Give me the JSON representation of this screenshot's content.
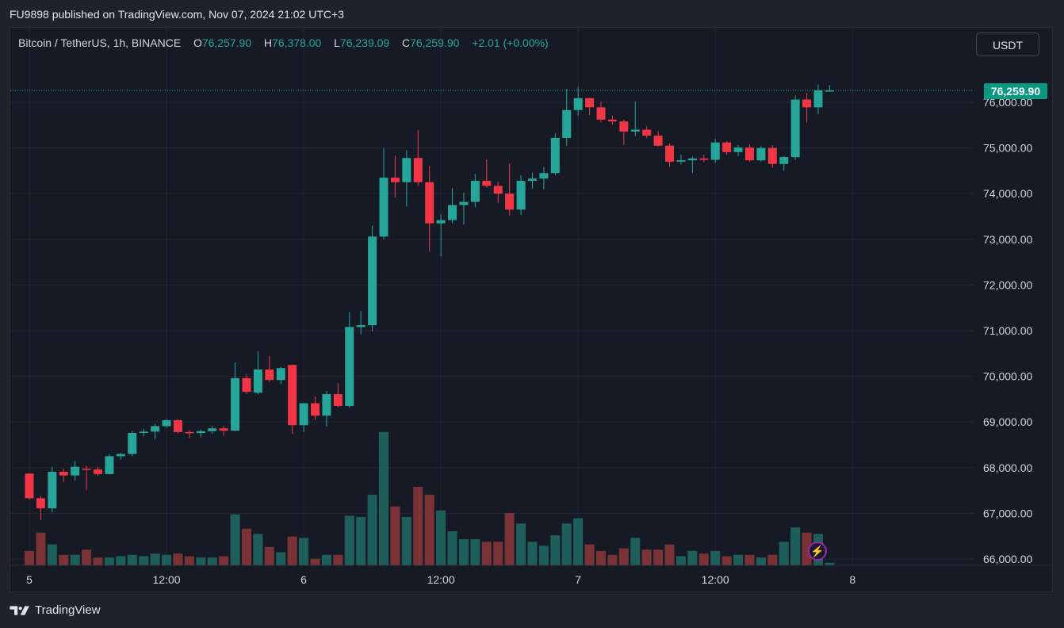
{
  "header": {
    "publish_line": "FU9898 published on TradingView.com, Nov 07, 2024 21:02 UTC+3"
  },
  "legend": {
    "symbol": "Bitcoin / TetherUS, 1h, BINANCE",
    "o_label": "O",
    "o_value": "76,257.90",
    "h_label": "H",
    "h_value": "76,378.00",
    "l_label": "L",
    "l_value": "76,239.09",
    "c_label": "C",
    "c_value": "76,259.90",
    "change": "+2.01 (+0.00%)"
  },
  "currency_button": "USDT",
  "last_price_label": "76,259.90",
  "footer": {
    "brand": "TradingView"
  },
  "colors": {
    "up": "#26a69a",
    "down": "#f23645",
    "vol_up": "#1f5f5b",
    "vol_down": "#7a3236",
    "grid": "#232632",
    "price_line": "#26a69a",
    "axis_text": "#d1d4dc"
  },
  "icons": [
    "tradingview-logo-icon",
    "lightning-icon"
  ],
  "chart_data": {
    "type": "candlestick",
    "interval": "1h",
    "price_axis": {
      "ticks": [
        "66,000.00",
        "67,000.00",
        "68,000.00",
        "69,000.00",
        "70,000.00",
        "71,000.00",
        "72,000.00",
        "73,000.00",
        "74,000.00",
        "75,000.00",
        "76,000.00"
      ],
      "ylim": [
        65950,
        76700
      ],
      "position": "right"
    },
    "time_axis": {
      "ticks": [
        {
          "label": "5",
          "index": 0
        },
        {
          "label": "12:00",
          "index": 12
        },
        {
          "label": "6",
          "index": 24
        },
        {
          "label": "12:00",
          "index": 36
        },
        {
          "label": "7",
          "index": 48
        },
        {
          "label": "12:00",
          "index": 60
        },
        {
          "label": "8",
          "index": 72
        }
      ]
    },
    "grid": true,
    "last_price": 76259.9,
    "candles": [
      {
        "o": 67870,
        "h": 67880,
        "l": 67300,
        "c": 67330
      },
      {
        "o": 67330,
        "h": 67380,
        "l": 66850,
        "c": 67110
      },
      {
        "o": 67110,
        "h": 68020,
        "l": 67020,
        "c": 67910
      },
      {
        "o": 67910,
        "h": 67980,
        "l": 67680,
        "c": 67830
      },
      {
        "o": 67830,
        "h": 68150,
        "l": 67720,
        "c": 68020
      },
      {
        "o": 67980,
        "h": 68040,
        "l": 67500,
        "c": 67960
      },
      {
        "o": 67960,
        "h": 68020,
        "l": 67820,
        "c": 67860
      },
      {
        "o": 67860,
        "h": 68300,
        "l": 67850,
        "c": 68250
      },
      {
        "o": 68250,
        "h": 68320,
        "l": 68180,
        "c": 68300
      },
      {
        "o": 68300,
        "h": 68810,
        "l": 68250,
        "c": 68760
      },
      {
        "o": 68760,
        "h": 68850,
        "l": 68680,
        "c": 68790
      },
      {
        "o": 68790,
        "h": 68960,
        "l": 68620,
        "c": 68910
      },
      {
        "o": 68910,
        "h": 69060,
        "l": 68870,
        "c": 69040
      },
      {
        "o": 69040,
        "h": 69060,
        "l": 68750,
        "c": 68780
      },
      {
        "o": 68780,
        "h": 68830,
        "l": 68640,
        "c": 68760
      },
      {
        "o": 68760,
        "h": 68840,
        "l": 68660,
        "c": 68800
      },
      {
        "o": 68800,
        "h": 68910,
        "l": 68740,
        "c": 68860
      },
      {
        "o": 68860,
        "h": 68920,
        "l": 68700,
        "c": 68810
      },
      {
        "o": 68810,
        "h": 70300,
        "l": 68800,
        "c": 69960
      },
      {
        "o": 69960,
        "h": 70050,
        "l": 69610,
        "c": 69660
      },
      {
        "o": 69640,
        "h": 70550,
        "l": 69600,
        "c": 70150
      },
      {
        "o": 70150,
        "h": 70450,
        "l": 69870,
        "c": 69920
      },
      {
        "o": 69920,
        "h": 70200,
        "l": 69830,
        "c": 70180
      },
      {
        "o": 70250,
        "h": 70260,
        "l": 68740,
        "c": 68930
      },
      {
        "o": 68930,
        "h": 69420,
        "l": 68780,
        "c": 69410
      },
      {
        "o": 69410,
        "h": 69560,
        "l": 69040,
        "c": 69140
      },
      {
        "o": 69140,
        "h": 69680,
        "l": 68900,
        "c": 69610
      },
      {
        "o": 69610,
        "h": 69850,
        "l": 69320,
        "c": 69350
      },
      {
        "o": 69350,
        "h": 71400,
        "l": 69310,
        "c": 71080
      },
      {
        "o": 71080,
        "h": 71430,
        "l": 70920,
        "c": 71120
      },
      {
        "o": 71120,
        "h": 73300,
        "l": 70980,
        "c": 73060
      },
      {
        "o": 73060,
        "h": 75000,
        "l": 73000,
        "c": 74350
      },
      {
        "o": 74350,
        "h": 74830,
        "l": 73920,
        "c": 74250
      },
      {
        "o": 74250,
        "h": 74950,
        "l": 73720,
        "c": 74780
      },
      {
        "o": 74780,
        "h": 75390,
        "l": 74170,
        "c": 74250
      },
      {
        "o": 74250,
        "h": 74600,
        "l": 72730,
        "c": 73350
      },
      {
        "o": 73350,
        "h": 73550,
        "l": 72630,
        "c": 73420
      },
      {
        "o": 73420,
        "h": 74120,
        "l": 73350,
        "c": 73750
      },
      {
        "o": 73750,
        "h": 74020,
        "l": 73320,
        "c": 73820
      },
      {
        "o": 73820,
        "h": 74430,
        "l": 73700,
        "c": 74280
      },
      {
        "o": 74280,
        "h": 74750,
        "l": 74130,
        "c": 74170
      },
      {
        "o": 74170,
        "h": 74260,
        "l": 73800,
        "c": 74000
      },
      {
        "o": 74000,
        "h": 74660,
        "l": 73520,
        "c": 73650
      },
      {
        "o": 73650,
        "h": 74400,
        "l": 73530,
        "c": 74280
      },
      {
        "o": 74280,
        "h": 74460,
        "l": 74110,
        "c": 74330
      },
      {
        "o": 74330,
        "h": 74580,
        "l": 74100,
        "c": 74450
      },
      {
        "o": 74450,
        "h": 75320,
        "l": 74400,
        "c": 75220
      },
      {
        "o": 75220,
        "h": 76300,
        "l": 75050,
        "c": 75830
      },
      {
        "o": 75830,
        "h": 76340,
        "l": 75700,
        "c": 76090
      },
      {
        "o": 76090,
        "h": 76100,
        "l": 75720,
        "c": 75890
      },
      {
        "o": 75890,
        "h": 76020,
        "l": 75560,
        "c": 75620
      },
      {
        "o": 75620,
        "h": 75710,
        "l": 75510,
        "c": 75580
      },
      {
        "o": 75580,
        "h": 75620,
        "l": 75060,
        "c": 75360
      },
      {
        "o": 75360,
        "h": 76020,
        "l": 75260,
        "c": 75400
      },
      {
        "o": 75400,
        "h": 75470,
        "l": 75220,
        "c": 75270
      },
      {
        "o": 75270,
        "h": 75370,
        "l": 75030,
        "c": 75050
      },
      {
        "o": 75050,
        "h": 75100,
        "l": 74590,
        "c": 74700
      },
      {
        "o": 74700,
        "h": 74850,
        "l": 74640,
        "c": 74730
      },
      {
        "o": 74730,
        "h": 74810,
        "l": 74450,
        "c": 74770
      },
      {
        "o": 74770,
        "h": 74850,
        "l": 74690,
        "c": 74740
      },
      {
        "o": 74740,
        "h": 75200,
        "l": 74680,
        "c": 75120
      },
      {
        "o": 75120,
        "h": 75150,
        "l": 74850,
        "c": 74910
      },
      {
        "o": 74910,
        "h": 75060,
        "l": 74820,
        "c": 75010
      },
      {
        "o": 75010,
        "h": 75080,
        "l": 74700,
        "c": 74730
      },
      {
        "o": 74730,
        "h": 75040,
        "l": 74700,
        "c": 75000
      },
      {
        "o": 75000,
        "h": 75060,
        "l": 74570,
        "c": 74650
      },
      {
        "o": 74650,
        "h": 74820,
        "l": 74500,
        "c": 74800
      },
      {
        "o": 74800,
        "h": 76150,
        "l": 74740,
        "c": 76060
      },
      {
        "o": 76060,
        "h": 76200,
        "l": 75560,
        "c": 75890
      },
      {
        "o": 75890,
        "h": 76378,
        "l": 75740,
        "c": 76260
      },
      {
        "o": 76257.9,
        "h": 76378,
        "l": 76239.09,
        "c": 76259.9
      }
    ],
    "volume": [
      {
        "v": 1.1,
        "up": false
      },
      {
        "v": 2.5,
        "up": false
      },
      {
        "v": 1.6,
        "up": true
      },
      {
        "v": 0.8,
        "up": false
      },
      {
        "v": 0.8,
        "up": true
      },
      {
        "v": 1.2,
        "up": false
      },
      {
        "v": 0.6,
        "up": false
      },
      {
        "v": 0.6,
        "up": true
      },
      {
        "v": 0.7,
        "up": true
      },
      {
        "v": 0.8,
        "up": true
      },
      {
        "v": 0.7,
        "up": true
      },
      {
        "v": 0.9,
        "up": true
      },
      {
        "v": 0.8,
        "up": true
      },
      {
        "v": 0.9,
        "up": false
      },
      {
        "v": 0.7,
        "up": false
      },
      {
        "v": 0.6,
        "up": true
      },
      {
        "v": 0.6,
        "up": true
      },
      {
        "v": 0.7,
        "up": false
      },
      {
        "v": 3.9,
        "up": true
      },
      {
        "v": 2.8,
        "up": false
      },
      {
        "v": 2.4,
        "up": true
      },
      {
        "v": 1.4,
        "up": false
      },
      {
        "v": 1.0,
        "up": true
      },
      {
        "v": 2.2,
        "up": false
      },
      {
        "v": 2.1,
        "up": true
      },
      {
        "v": 0.5,
        "up": false
      },
      {
        "v": 0.8,
        "up": true
      },
      {
        "v": 0.8,
        "up": false
      },
      {
        "v": 3.8,
        "up": true
      },
      {
        "v": 3.7,
        "up": true
      },
      {
        "v": 5.4,
        "up": true
      },
      {
        "v": 10.2,
        "up": true
      },
      {
        "v": 4.5,
        "up": false
      },
      {
        "v": 3.7,
        "up": true
      },
      {
        "v": 6.0,
        "up": false
      },
      {
        "v": 5.4,
        "up": false
      },
      {
        "v": 4.2,
        "up": true
      },
      {
        "v": 2.6,
        "up": true
      },
      {
        "v": 2.0,
        "up": true
      },
      {
        "v": 2.0,
        "up": true
      },
      {
        "v": 1.8,
        "up": false
      },
      {
        "v": 1.8,
        "up": false
      },
      {
        "v": 4.0,
        "up": false
      },
      {
        "v": 3.2,
        "up": true
      },
      {
        "v": 1.8,
        "up": true
      },
      {
        "v": 1.5,
        "up": true
      },
      {
        "v": 2.3,
        "up": true
      },
      {
        "v": 3.2,
        "up": true
      },
      {
        "v": 3.6,
        "up": true
      },
      {
        "v": 1.6,
        "up": false
      },
      {
        "v": 1.1,
        "up": false
      },
      {
        "v": 0.8,
        "up": false
      },
      {
        "v": 1.3,
        "up": false
      },
      {
        "v": 2.1,
        "up": true
      },
      {
        "v": 1.2,
        "up": false
      },
      {
        "v": 1.2,
        "up": false
      },
      {
        "v": 1.6,
        "up": false
      },
      {
        "v": 0.7,
        "up": true
      },
      {
        "v": 1.1,
        "up": true
      },
      {
        "v": 0.9,
        "up": false
      },
      {
        "v": 1.1,
        "up": true
      },
      {
        "v": 0.7,
        "up": false
      },
      {
        "v": 0.8,
        "up": true
      },
      {
        "v": 0.8,
        "up": false
      },
      {
        "v": 0.6,
        "up": true
      },
      {
        "v": 0.8,
        "up": false
      },
      {
        "v": 1.8,
        "up": true
      },
      {
        "v": 2.9,
        "up": true
      },
      {
        "v": 2.5,
        "up": false
      },
      {
        "v": 2.4,
        "up": true
      },
      {
        "v": 0.2,
        "up": true
      }
    ]
  }
}
